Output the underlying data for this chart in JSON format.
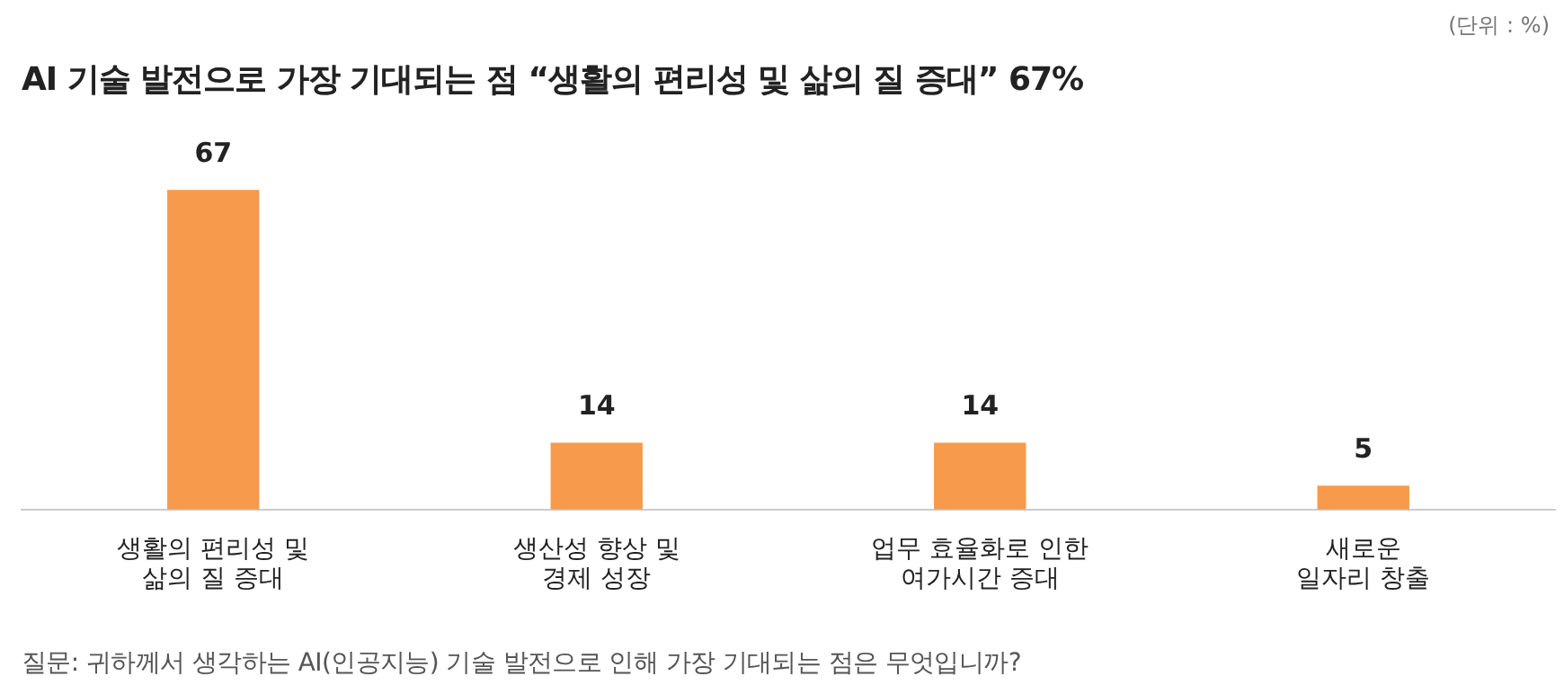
{
  "chart_data": {
    "type": "bar",
    "title": "AI 기술 발전으로 가장 기대되는 점 “생활의 편리성 및 삶의 질 증대” 67%",
    "categories": [
      "생활의 편리성 및\n삶의 질 증대",
      "생산성 향상 및\n경제 성장",
      "업무 효율화로 인한\n여가시간 증대",
      "새로운\n일자리 창출"
    ],
    "values": [
      67,
      14,
      14,
      5
    ],
    "color": "#f79a4b",
    "data_labels": true,
    "grid": false,
    "legend": false,
    "annotations": [
      "(단위 : %)",
      "질문: 귀하께서 생각하는 AI(인공지능) 기술 발전으로 인해 가장 기대되는 점은 무엇입니까?"
    ]
  }
}
